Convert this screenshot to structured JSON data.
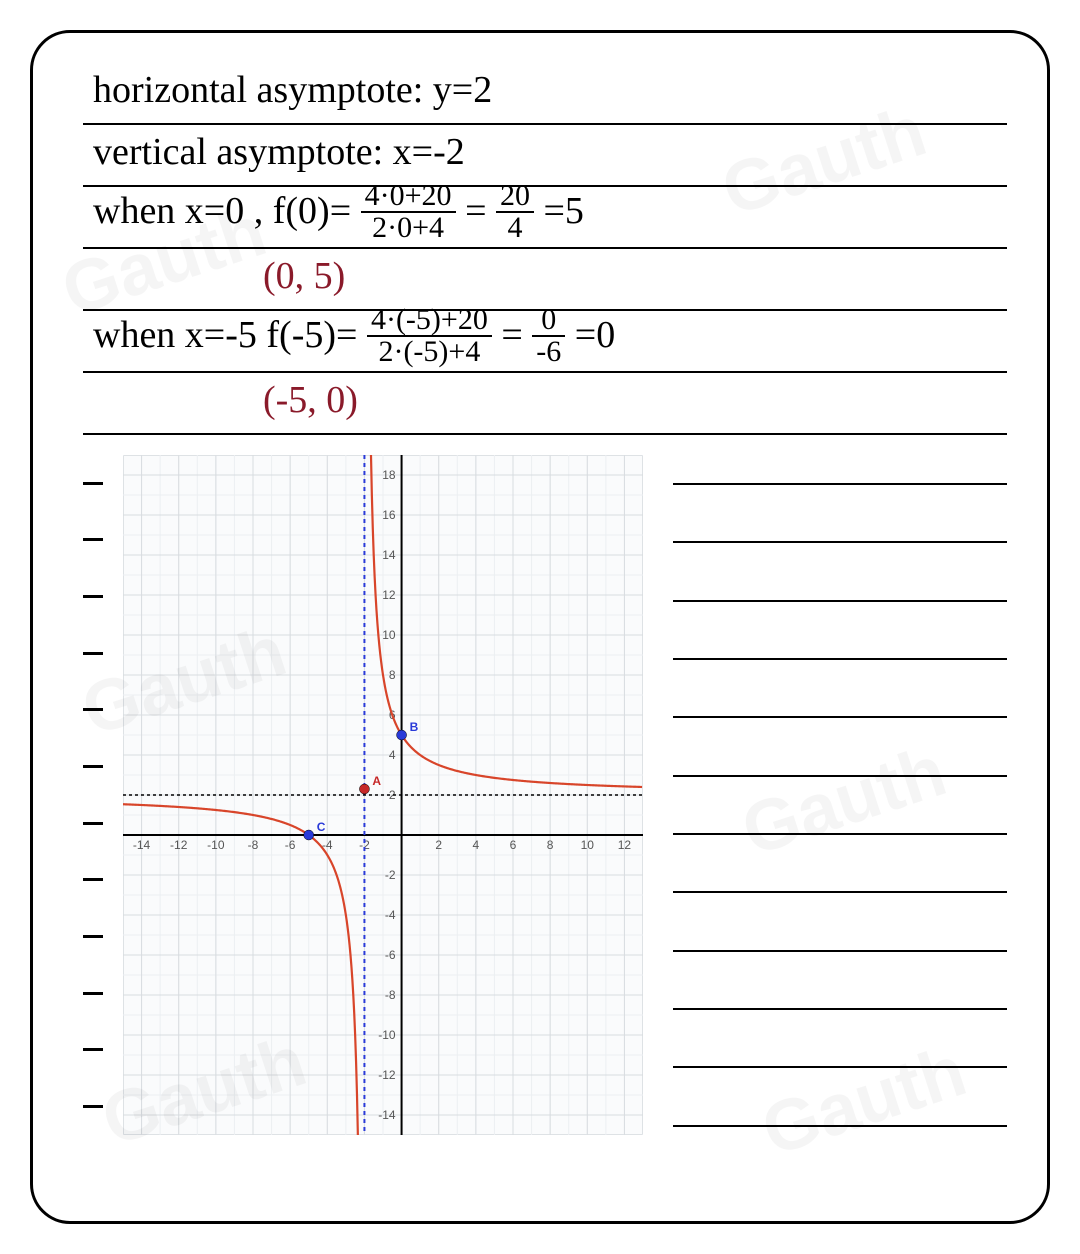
{
  "lines": {
    "l1": "horizontal asymptote:  y=2",
    "l2": "vertical  asymptote:  x=-2",
    "l3_a": "when  x=0 ,  f(0)=",
    "l3_frac1_num": "4·0+20",
    "l3_frac1_den": "2·0+4",
    "l3_b": " = ",
    "l3_frac2_num": "20",
    "l3_frac2_den": "4",
    "l3_c": "=5",
    "l4": "(0, 5)",
    "l5_a": "when  x=-5   f(-5)=",
    "l5_frac1_num": "4·(-5)+20",
    "l5_frac1_den": "2·(-5)+4",
    "l5_b": " = ",
    "l5_frac2_num": "0",
    "l5_frac2_den": "-6",
    "l5_c": "=0",
    "l6": "(-5, 0)"
  },
  "chart": {
    "type": "line",
    "xlim": [
      -15,
      13
    ],
    "ylim": [
      -15,
      19
    ],
    "xtick_step": 2,
    "ytick_step": 2,
    "x_ticks": [
      -14,
      -12,
      -10,
      -8,
      -6,
      -4,
      -2,
      0,
      2,
      4,
      6,
      8,
      10,
      12
    ],
    "y_ticks": [
      -14,
      -12,
      -10,
      -8,
      -6,
      -4,
      -2,
      2,
      4,
      6,
      8,
      10,
      12,
      14,
      16,
      18
    ],
    "background_color": "#fafbfc",
    "grid_color": "#d8dce0",
    "grid_minor_color": "#eceff2",
    "axis_color": "#000000",
    "curve_color": "#d8452a",
    "curve_width": 2.2,
    "vertical_asymptote": {
      "x": -2,
      "color": "#2a3ad8",
      "dash": "4,4",
      "width": 2
    },
    "horizontal_asymptote": {
      "y": 2,
      "color": "#000000",
      "dash": "3,3",
      "width": 1.5
    },
    "points": [
      {
        "id": "A",
        "x": -2,
        "y": 2.3,
        "color": "#c62828",
        "label_color": "#c62828"
      },
      {
        "id": "B",
        "x": 0,
        "y": 5,
        "color": "#2a3ad8",
        "label_color": "#2a3ad8"
      },
      {
        "id": "C",
        "x": -5,
        "y": 0,
        "color": "#2a3ad8",
        "label_color": "#2a3ad8"
      }
    ],
    "left_tick_count": 12,
    "right_line_count": 12
  },
  "watermark": "Gauth"
}
